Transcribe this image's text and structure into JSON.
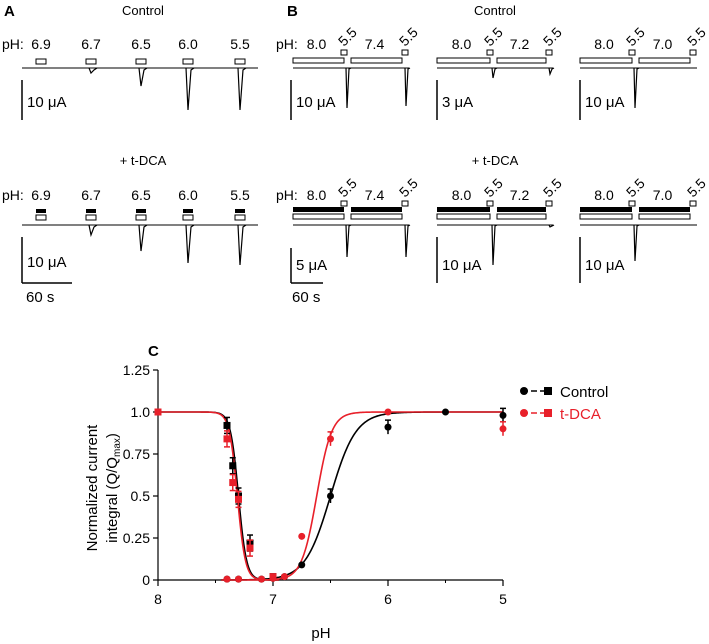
{
  "panel_a": {
    "letter": "A",
    "control_label": "Control",
    "tdca_label": "+ t-DCA",
    "ph_prefix": "pH:",
    "ph_values": [
      "6.9",
      "6.7",
      "6.5",
      "6.0",
      "5.5"
    ],
    "control_peaks": [
      0,
      0.5,
      1.8,
      4.2,
      4.2
    ],
    "tdca_peaks": [
      0,
      1.0,
      2.6,
      3.8,
      4.0
    ],
    "scalebar_control": "10 μA",
    "scalebar_tdca": "10 μA",
    "time_bar": "60 s"
  },
  "panel_b": {
    "letter": "B",
    "control_label": "Control",
    "tdca_label": "+ t-DCA",
    "ph_prefix": "pH:",
    "groups": [
      {
        "base": "8.0",
        "test": "7.4",
        "step": "5.5",
        "scale_control": "10 μA",
        "scale_tdca": "5 μA"
      },
      {
        "base": "8.0",
        "test": "7.2",
        "step": "5.5",
        "scale_control": "3 μA",
        "scale_tdca": "10 μA"
      },
      {
        "base": "8.0",
        "test": "7.0",
        "step": "5.5",
        "scale_control": "10 μA",
        "scale_tdca": "10 μA"
      }
    ],
    "time_bar": "60 s"
  },
  "panel_c": {
    "letter": "C",
    "legend": [
      "Control",
      "t-DCA"
    ],
    "colors": {
      "control": "#000000",
      "tdca": "#e8202a"
    }
  },
  "chart_data": {
    "type": "scatter",
    "xlabel": "pH",
    "ylabel_main": "Normalized current",
    "ylabel_integral": "integral (Q/Q",
    "ylabel_sub": "max",
    "ylabel_close": ")",
    "xlim": [
      8,
      5
    ],
    "ylim": [
      0,
      1.25
    ],
    "xticks": [
      "8",
      "7",
      "6",
      "5"
    ],
    "yticks": [
      "0",
      "0.25",
      "0.5",
      "0.75",
      "1.0",
      "1.25"
    ],
    "series": [
      {
        "name": "Control",
        "activation": {
          "x": [
            7.4,
            7.3,
            7.1,
            7.0,
            6.9,
            6.75,
            6.5,
            6.0,
            5.5,
            5.0
          ],
          "y": [
            0.005,
            0.005,
            0.005,
            0.01,
            0.02,
            0.09,
            0.5,
            0.91,
            1.0,
            0.98
          ]
        },
        "inactivation": {
          "x": [
            8.0,
            7.4,
            7.35,
            7.3,
            7.2,
            7.0
          ],
          "y": [
            1.0,
            0.92,
            0.68,
            0.5,
            0.22,
            0.02
          ]
        }
      },
      {
        "name": "t-DCA",
        "activation": {
          "x": [
            7.4,
            7.3,
            7.1,
            7.0,
            6.9,
            6.75,
            6.5,
            6.0,
            5.0
          ],
          "y": [
            0.005,
            0.005,
            0.005,
            0.01,
            0.02,
            0.26,
            0.84,
            1.0,
            0.9
          ]
        },
        "inactivation": {
          "x": [
            8.0,
            7.4,
            7.35,
            7.3,
            7.2,
            7.0
          ],
          "y": [
            1.0,
            0.84,
            0.58,
            0.48,
            0.19,
            0.02
          ]
        }
      }
    ]
  }
}
